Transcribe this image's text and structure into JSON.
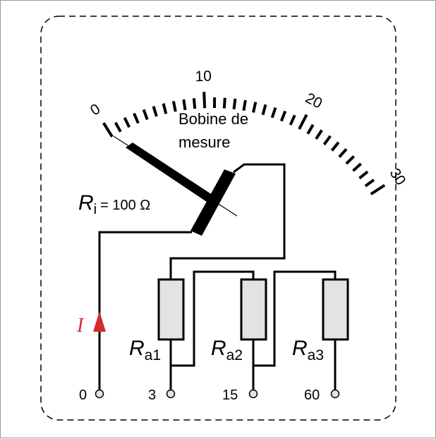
{
  "scale": {
    "min": 0,
    "max": 30,
    "major_labels": [
      "0",
      "10",
      "20",
      "30"
    ],
    "tick_count": 31
  },
  "coil_label_line1": "Bobine de",
  "coil_label_line2": "mesure",
  "internal_resistance": {
    "symbol": "R",
    "subscript": "i",
    "value_text": "= 100 Ω"
  },
  "current": {
    "symbol": "I",
    "color": "#d42a2a"
  },
  "resistors": [
    {
      "symbol": "R",
      "subscript": "a1"
    },
    {
      "symbol": "R",
      "subscript": "a2"
    },
    {
      "symbol": "R",
      "subscript": "a3"
    }
  ],
  "terminals": [
    "0",
    "3",
    "15",
    "60"
  ],
  "colors": {
    "resistor_fill": "#e3e3e3",
    "line": "#000000"
  }
}
